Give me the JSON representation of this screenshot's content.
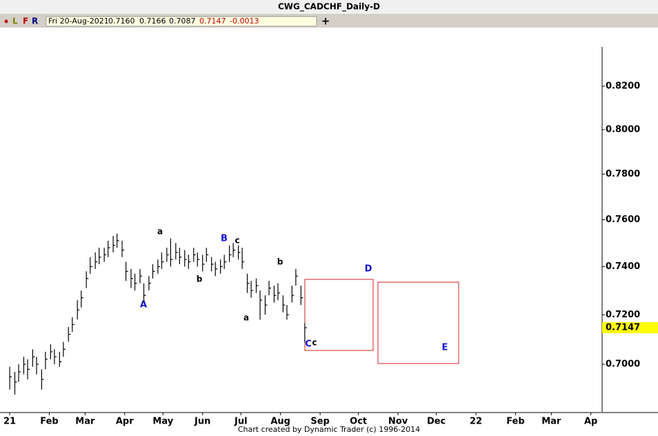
{
  "header": {
    "title": "CWG_CADCHF_Daily-D"
  },
  "toolbar": {
    "items": [
      "L",
      "F",
      "R"
    ],
    "info": [
      "Fri 20-Aug-2021",
      "0.7160",
      "0.7166",
      "0.7087",
      "0.7147",
      "-0.0013"
    ]
  },
  "footer": "Chart created by Dynamic Trader  (c) 1996-2014",
  "chart_data": {
    "type": "ohlc",
    "log_scale": true,
    "color": "#000000",
    "x": [
      1,
      5,
      8,
      12,
      15,
      19,
      22,
      26,
      29,
      33,
      36,
      40,
      43,
      47,
      50,
      54,
      57,
      61,
      64,
      68,
      71,
      75,
      78,
      82,
      85,
      89,
      92,
      96,
      99,
      103,
      106,
      110,
      113,
      117,
      120,
      124,
      127,
      131,
      134,
      138,
      141,
      145,
      148,
      152,
      155,
      159,
      162,
      166,
      169,
      173,
      176,
      180,
      183,
      187,
      190,
      194,
      197,
      201,
      204,
      208,
      211,
      215,
      218,
      222,
      225,
      229,
      232
    ],
    "high": [
      0.699,
      0.697,
      0.7,
      0.703,
      0.702,
      0.706,
      0.703,
      0.698,
      0.705,
      0.708,
      0.706,
      0.705,
      0.709,
      0.715,
      0.719,
      0.726,
      0.73,
      0.738,
      0.744,
      0.746,
      0.748,
      0.748,
      0.751,
      0.753,
      0.754,
      0.751,
      0.742,
      0.739,
      0.737,
      0.739,
      0.733,
      0.736,
      0.741,
      0.743,
      0.746,
      0.748,
      0.752,
      0.75,
      0.748,
      0.747,
      0.745,
      0.748,
      0.746,
      0.745,
      0.748,
      0.744,
      0.742,
      0.743,
      0.745,
      0.749,
      0.75,
      0.749,
      0.748,
      0.737,
      0.734,
      0.735,
      0.73,
      0.728,
      0.734,
      0.732,
      0.733,
      0.728,
      0.724,
      0.732,
      0.739,
      0.732,
      0.7166
    ],
    "low": [
      0.69,
      0.688,
      0.693,
      0.696,
      0.694,
      0.699,
      0.696,
      0.69,
      0.698,
      0.702,
      0.7,
      0.699,
      0.703,
      0.709,
      0.713,
      0.718,
      0.723,
      0.731,
      0.737,
      0.739,
      0.741,
      0.742,
      0.744,
      0.746,
      0.748,
      0.744,
      0.734,
      0.731,
      0.73,
      0.733,
      0.725,
      0.73,
      0.735,
      0.737,
      0.739,
      0.742,
      0.74,
      0.743,
      0.741,
      0.74,
      0.739,
      0.742,
      0.74,
      0.738,
      0.742,
      0.738,
      0.736,
      0.737,
      0.739,
      0.742,
      0.744,
      0.743,
      0.739,
      0.729,
      0.727,
      0.729,
      0.718,
      0.72,
      0.728,
      0.725,
      0.726,
      0.721,
      0.718,
      0.725,
      0.732,
      0.724,
      0.7087
    ],
    "close": [
      0.695,
      0.693,
      0.697,
      0.7,
      0.698,
      0.703,
      0.7,
      0.694,
      0.702,
      0.705,
      0.703,
      0.701,
      0.706,
      0.712,
      0.716,
      0.722,
      0.727,
      0.735,
      0.74,
      0.742,
      0.744,
      0.745,
      0.748,
      0.749,
      0.751,
      0.747,
      0.738,
      0.735,
      0.733,
      0.736,
      0.728,
      0.733,
      0.738,
      0.74,
      0.742,
      0.745,
      0.743,
      0.746,
      0.744,
      0.743,
      0.742,
      0.745,
      0.743,
      0.741,
      0.745,
      0.741,
      0.739,
      0.74,
      0.742,
      0.745,
      0.747,
      0.746,
      0.742,
      0.733,
      0.73,
      0.732,
      0.726,
      0.724,
      0.731,
      0.728,
      0.729,
      0.724,
      0.72,
      0.728,
      0.736,
      0.727,
      0.7147
    ],
    "xlim": [
      -6.6,
      464.8
    ],
    "xticks": [
      {
        "value": 1,
        "label": "21"
      },
      {
        "value": 32,
        "label": "Feb"
      },
      {
        "value": 60,
        "label": "Mar"
      },
      {
        "value": 91,
        "label": "Apr"
      },
      {
        "value": 121,
        "label": "May"
      },
      {
        "value": 152,
        "label": "Jun"
      },
      {
        "value": 182,
        "label": "Jul"
      },
      {
        "value": 213,
        "label": "Aug"
      },
      {
        "value": 244,
        "label": "Sep"
      },
      {
        "value": 274,
        "label": "Oct"
      },
      {
        "value": 305,
        "label": "Nov"
      },
      {
        "value": 335,
        "label": "Dec"
      },
      {
        "value": 366,
        "label": "22"
      },
      {
        "value": 397,
        "label": "Feb"
      },
      {
        "value": 425,
        "label": "Mar"
      },
      {
        "value": 456,
        "label": "Ap"
      }
    ],
    "ylim": [
      0.6813,
      0.8478
    ],
    "yticks": [
      {
        "value": 0.7,
        "label": "0.7000"
      },
      {
        "value": 0.72,
        "label": "0.7200"
      },
      {
        "value": 0.74,
        "label": "0.7400"
      },
      {
        "value": 0.76,
        "label": "0.7600"
      },
      {
        "value": 0.78,
        "label": "0.7800"
      },
      {
        "value": 0.8,
        "label": "0.8000"
      },
      {
        "value": 0.82,
        "label": "0.8200"
      }
    ],
    "current_price": {
      "value": 0.7147,
      "label": "0.7147"
    },
    "annotations": [
      "a",
      "B",
      "c",
      "A",
      "b",
      "b",
      "a",
      "C",
      "c",
      "D",
      "E"
    ]
  }
}
